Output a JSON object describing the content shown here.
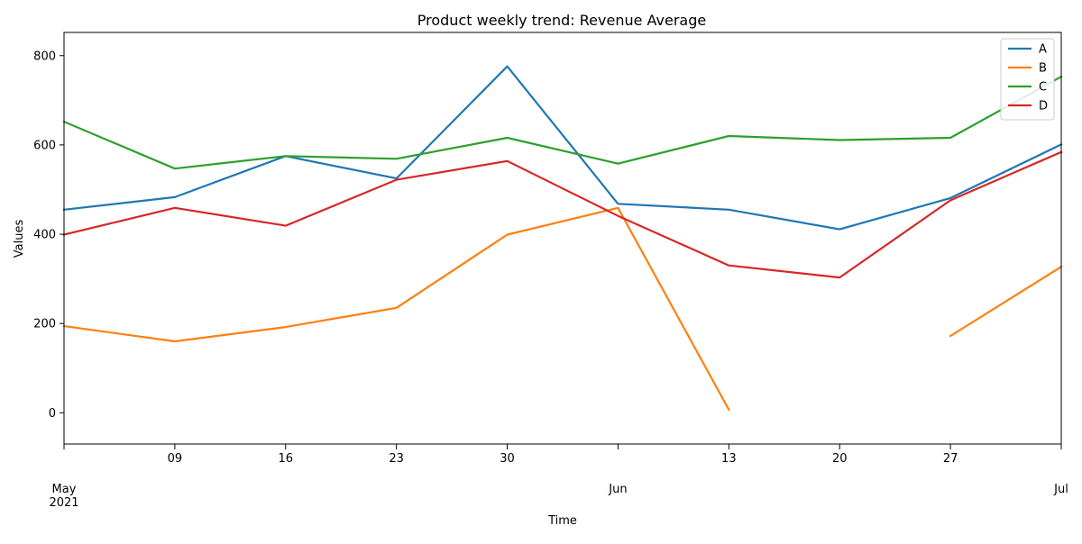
{
  "chart_data": {
    "type": "line",
    "title": "Product weekly trend: Revenue Average",
    "xlabel": "Time",
    "ylabel": "Values",
    "x": [
      "2021-05-02",
      "2021-05-09",
      "2021-05-16",
      "2021-05-23",
      "2021-05-30",
      "2021-06-06",
      "2021-06-13",
      "2021-06-20",
      "2021-06-27",
      "2021-07-04"
    ],
    "x_ticks": [
      {
        "date": "2021-05-02",
        "label": "May",
        "sub": "2021"
      },
      {
        "date": "2021-05-09",
        "label": "09"
      },
      {
        "date": "2021-05-16",
        "label": "16"
      },
      {
        "date": "2021-05-23",
        "label": "23"
      },
      {
        "date": "2021-05-30",
        "label": "30"
      },
      {
        "date": "2021-06-06",
        "label": "Jun"
      },
      {
        "date": "2021-06-13",
        "label": "13"
      },
      {
        "date": "2021-06-20",
        "label": "20"
      },
      {
        "date": "2021-06-27",
        "label": "27"
      },
      {
        "date": "2021-07-04",
        "label": "Jul"
      }
    ],
    "y_ticks": [
      0,
      200,
      400,
      600,
      800
    ],
    "ylim": [
      -70,
      852
    ],
    "grid": false,
    "legend": "top-right",
    "series": [
      {
        "name": "A",
        "color": "#1f77b4",
        "values": [
          455,
          483,
          575,
          525,
          776,
          468,
          455,
          411,
          481,
          601
        ]
      },
      {
        "name": "B",
        "color": "#ff7f0e",
        "values": [
          194,
          160,
          192,
          235,
          399,
          459,
          7,
          null,
          172,
          327
        ]
      },
      {
        "name": "C",
        "color": "#2ca02c",
        "values": [
          652,
          547,
          575,
          569,
          616,
          558,
          620,
          611,
          616,
          753
        ]
      },
      {
        "name": "D",
        "color": "#d62728",
        "values": [
          399,
          459,
          419,
          522,
          564,
          441,
          330,
          303,
          476,
          584
        ]
      }
    ]
  }
}
